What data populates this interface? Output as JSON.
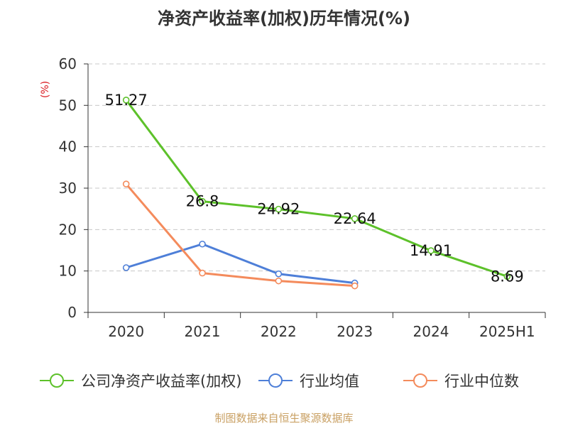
{
  "chart_data": {
    "type": "line",
    "title": "净资产收益率(加权)历年情况(%)",
    "ylabel": "(%)",
    "categories": [
      "2020",
      "2021",
      "2022",
      "2023",
      "2024",
      "2025H1"
    ],
    "ylim": [
      0,
      60
    ],
    "yticks": [
      0,
      10,
      20,
      30,
      40,
      50,
      60
    ],
    "grid": true,
    "legend_position": "bottom",
    "series": [
      {
        "name": "公司净资产收益率(加权)",
        "color": "#5dc12a",
        "values": [
          51.27,
          26.8,
          24.92,
          22.64,
          14.91,
          8.69
        ],
        "labels": [
          "51.27",
          "26.8",
          "24.92",
          "22.64",
          "14.91",
          "8.69"
        ]
      },
      {
        "name": "行业均值",
        "color": "#4e7fd8",
        "values": [
          10.8,
          16.5,
          9.3,
          7.1,
          null,
          null
        ]
      },
      {
        "name": "行业中位数",
        "color": "#f48b5c",
        "values": [
          31.0,
          9.5,
          7.6,
          6.4,
          null,
          null
        ]
      }
    ]
  },
  "source": "制图数据来自恒生聚源数据库"
}
